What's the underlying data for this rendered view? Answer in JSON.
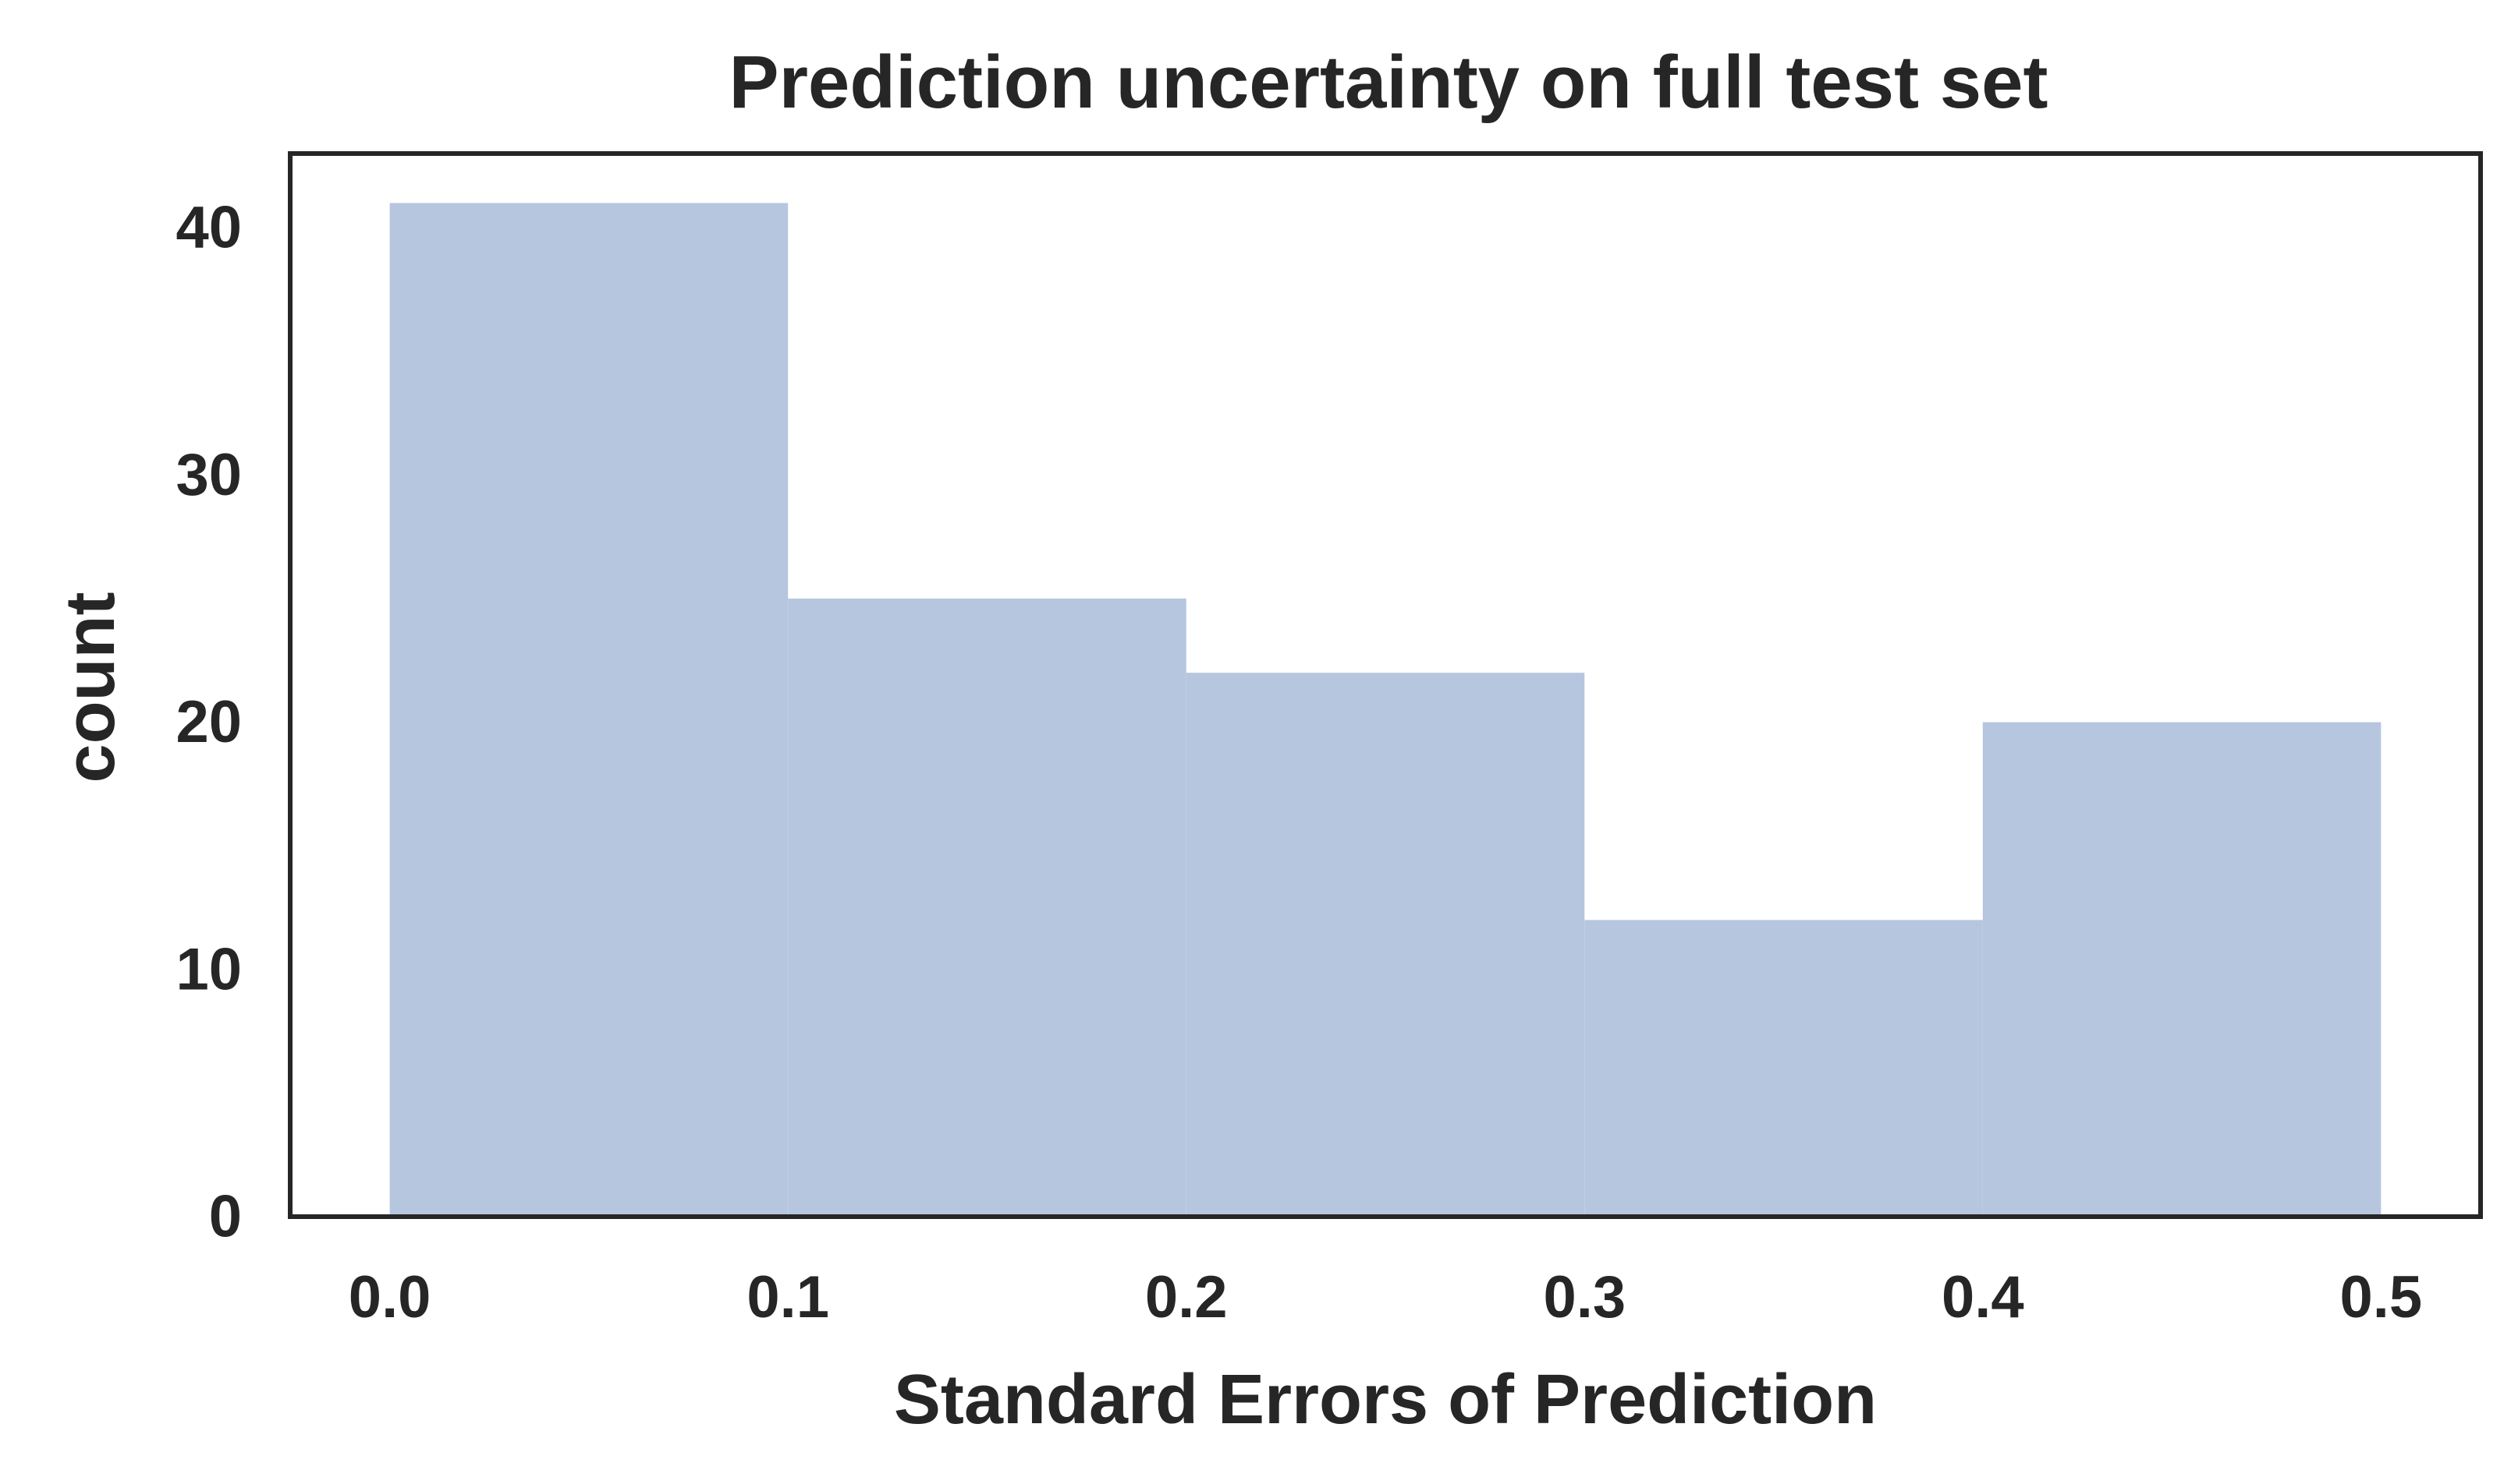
{
  "chart_data": {
    "type": "bar",
    "title": "Prediction uncertainty on full test set",
    "xlabel": "Standard Errors of Prediction",
    "ylabel": "count",
    "bins": [
      {
        "start": 0.0,
        "end": 0.1,
        "count": 41
      },
      {
        "start": 0.1,
        "end": 0.2,
        "count": 25
      },
      {
        "start": 0.2,
        "end": 0.3,
        "count": 22
      },
      {
        "start": 0.3,
        "end": 0.4,
        "count": 12
      },
      {
        "start": 0.4,
        "end": 0.5,
        "count": 20
      }
    ],
    "xlim": [
      -0.025,
      0.525
    ],
    "ylim": [
      0,
      43
    ],
    "xticks": [
      0.0,
      0.1,
      0.2,
      0.3,
      0.4,
      0.5
    ],
    "xtick_labels": [
      "0.0",
      "0.1",
      "0.2",
      "0.3",
      "0.4",
      "0.5"
    ],
    "yticks": [
      0,
      10,
      20,
      30,
      40
    ],
    "ytick_labels": [
      "0",
      "10",
      "20",
      "30",
      "40"
    ],
    "grid": false,
    "bar_color": "#b7c6df",
    "frame_color": "#262626"
  }
}
